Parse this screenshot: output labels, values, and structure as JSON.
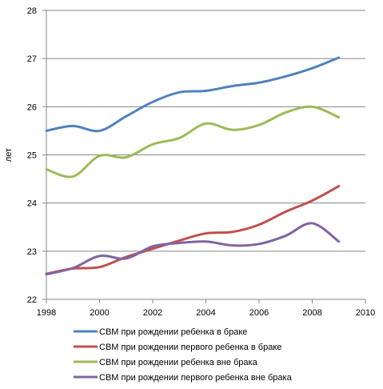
{
  "chart_data": {
    "type": "line",
    "ylabel": "лет",
    "xlabel": "",
    "title": "",
    "xlim": [
      1998,
      2010
    ],
    "ylim": [
      22,
      28
    ],
    "x_ticks": [
      "1998",
      "2000",
      "2002",
      "2004",
      "2006",
      "2008",
      "2010"
    ],
    "y_ticks": [
      "22",
      "23",
      "24",
      "25",
      "26",
      "27",
      "28"
    ],
    "grid": "horizontal",
    "legend_position": "bottom",
    "x": [
      1998,
      1999,
      2000,
      2001,
      2002,
      2003,
      2004,
      2005,
      2006,
      2007,
      2008,
      2009
    ],
    "series": [
      {
        "name": "СВМ при рождении ребенка в браке",
        "color": "#4F81BD",
        "values": [
          25.5,
          25.6,
          25.5,
          25.8,
          26.1,
          26.3,
          26.33,
          26.43,
          26.5,
          26.63,
          26.8,
          27.02
        ]
      },
      {
        "name": "СВМ при рождении первого ребенка в браке",
        "color": "#C0504D",
        "values": [
          22.53,
          22.64,
          22.67,
          22.88,
          23.05,
          23.22,
          23.37,
          23.4,
          23.55,
          23.82,
          24.05,
          24.35
        ]
      },
      {
        "name": "СВМ при рождении ребенка вне брака",
        "color": "#9BBB59",
        "values": [
          24.7,
          24.55,
          24.98,
          24.95,
          25.22,
          25.35,
          25.65,
          25.52,
          25.62,
          25.88,
          26.0,
          25.78
        ]
      },
      {
        "name": "СВМ при рождении первого ребенка вне брака",
        "color": "#8064A2",
        "values": [
          22.52,
          22.65,
          22.9,
          22.85,
          23.1,
          23.17,
          23.2,
          23.12,
          23.15,
          23.32,
          23.58,
          23.2
        ]
      }
    ]
  }
}
